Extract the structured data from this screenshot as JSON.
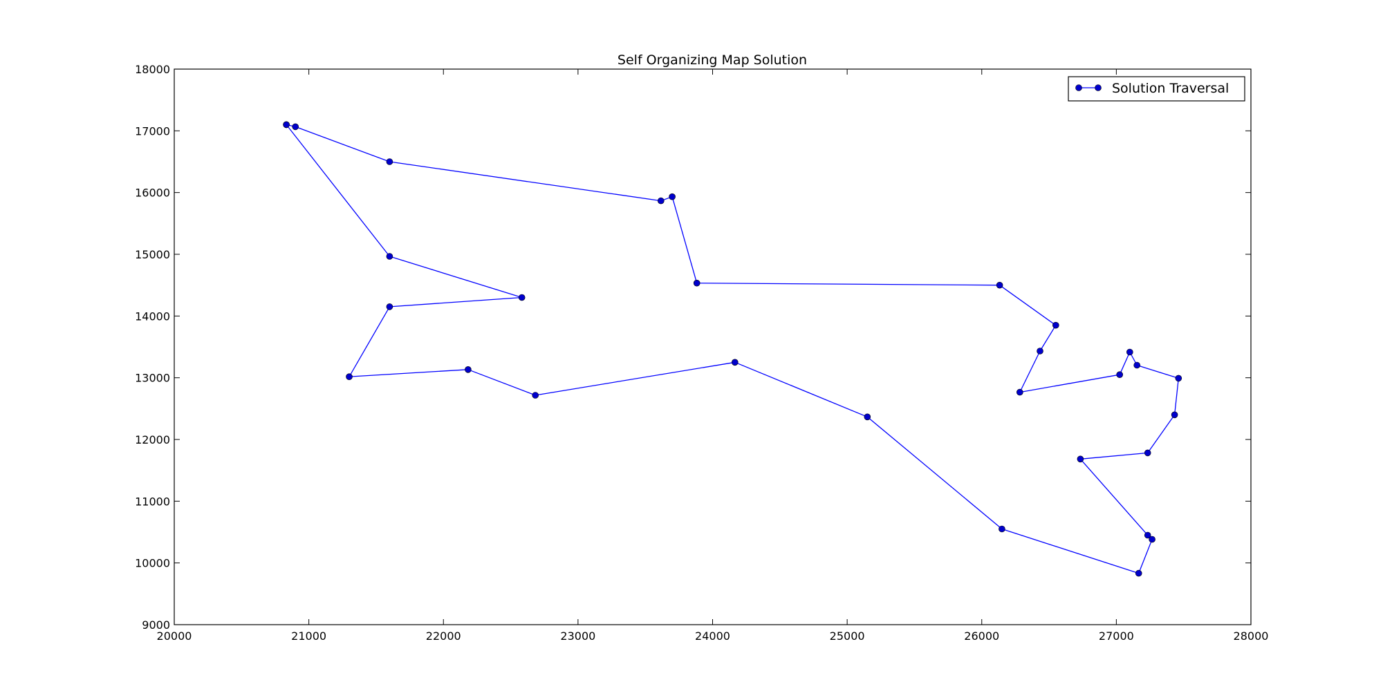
{
  "chart_data": {
    "type": "line",
    "title": "Self Organizing Map Solution",
    "xlabel": "",
    "ylabel": "",
    "xlim": [
      20000,
      28000
    ],
    "ylim": [
      9000,
      18000
    ],
    "xticks": [
      20000,
      21000,
      22000,
      23000,
      24000,
      25000,
      26000,
      27000,
      28000
    ],
    "yticks": [
      9000,
      10000,
      11000,
      12000,
      13000,
      14000,
      15000,
      16000,
      17000,
      18000
    ],
    "grid": false,
    "legend_position": "top-right",
    "line_color": "#0000ff",
    "marker_color": "#0000cc",
    "series": [
      {
        "name": "Solution Traversal",
        "points": [
          [
            20833,
            17100
          ],
          [
            20900,
            17066
          ],
          [
            21600,
            16500
          ],
          [
            23616,
            15866
          ],
          [
            23700,
            15933
          ],
          [
            23883,
            14533
          ],
          [
            26133,
            14500
          ],
          [
            26550,
            13850
          ],
          [
            26433,
            13433
          ],
          [
            26283,
            12766
          ],
          [
            27025,
            13050
          ],
          [
            27100,
            13416
          ],
          [
            27153,
            13203
          ],
          [
            27462,
            12992
          ],
          [
            27433,
            12400
          ],
          [
            27233,
            11783
          ],
          [
            26733,
            11683
          ],
          [
            27233,
            10450
          ],
          [
            27266,
            10383
          ],
          [
            27166,
            9833
          ],
          [
            26150,
            10550
          ],
          [
            25150,
            12366
          ],
          [
            24166,
            13250
          ],
          [
            22683,
            12716
          ],
          [
            22183,
            13133
          ],
          [
            21300,
            13016
          ],
          [
            21600,
            14150
          ],
          [
            22583,
            14300
          ],
          [
            21600,
            14966
          ],
          [
            20833,
            17100
          ]
        ]
      }
    ]
  }
}
